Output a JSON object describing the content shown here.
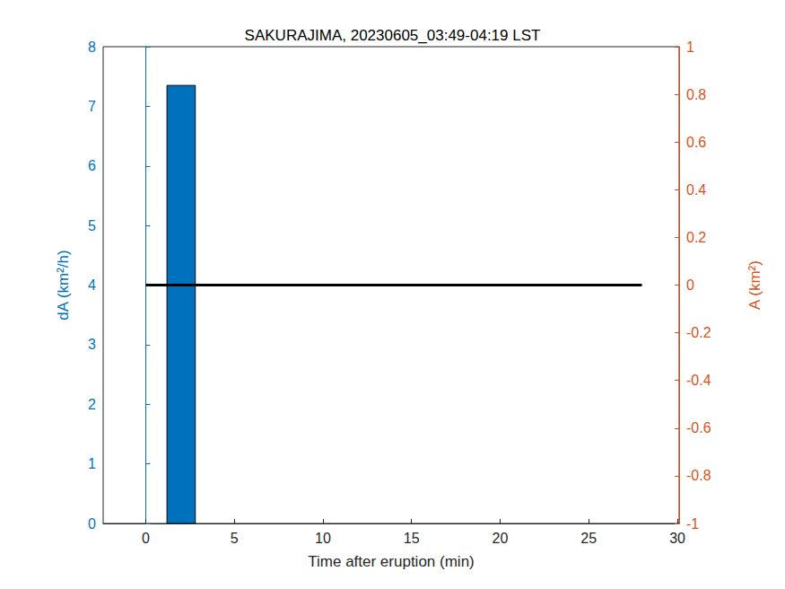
{
  "chart_data": {
    "type": "bar",
    "title": "SAKURAJIMA, 20230605_03:49-04:19 LST",
    "x_label": "Time after eruption (min)",
    "y_label": "dA (km²/h)",
    "y2_label": "A (km²)",
    "xlim": [
      -2.4,
      30.1
    ],
    "xticks": [
      0,
      5,
      10,
      15,
      20,
      25,
      30
    ],
    "ylim": [
      0,
      8
    ],
    "yticks": [
      0,
      1,
      2,
      3,
      4,
      5,
      6,
      7,
      8
    ],
    "y2lim": [
      -1,
      1
    ],
    "y2ticks": [
      -1,
      -0.8,
      -0.6,
      -0.4,
      -0.2,
      0,
      0.2,
      0.4,
      0.6,
      0.8,
      1
    ],
    "grid": false,
    "series": [
      {
        "type": "bar",
        "color": "#0072BD",
        "bins": [
          1.2,
          2.8
        ],
        "values": [
          7.35
        ]
      },
      {
        "type": "line",
        "axis": "y2",
        "color": "#000000",
        "x": [
          0,
          28
        ],
        "values": [
          0,
          0
        ]
      }
    ]
  }
}
